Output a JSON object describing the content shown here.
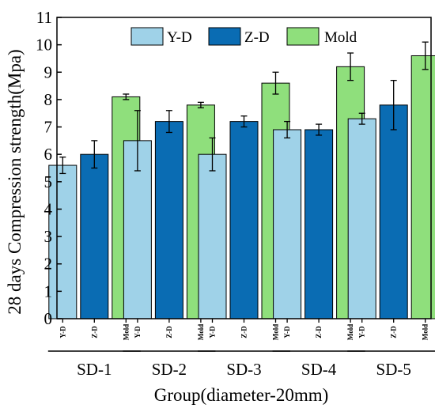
{
  "chart_data": {
    "type": "bar",
    "xlabel": "Group(diameter-20mm)",
    "ylabel": "28 days Compression strength(Mpa)",
    "ylim": [
      0,
      11
    ],
    "yticks": [
      0,
      1,
      2,
      3,
      4,
      5,
      6,
      7,
      8,
      9,
      10,
      11
    ],
    "grid": false,
    "legend_position": "top-center",
    "categories": [
      "SD-1",
      "SD-2",
      "SD-3",
      "SD-4",
      "SD-5"
    ],
    "bar_tick_labels": [
      "Y-D",
      "Z-D",
      "Mold"
    ],
    "series": [
      {
        "name": "Y-D",
        "color": "#9fd2e8",
        "values": [
          5.6,
          6.5,
          6.0,
          6.9,
          7.3
        ],
        "errors": [
          0.3,
          1.1,
          0.6,
          0.3,
          0.2
        ]
      },
      {
        "name": "Z-D",
        "color": "#0a6cb3",
        "values": [
          6.0,
          7.2,
          7.2,
          6.9,
          7.8
        ],
        "errors": [
          0.5,
          0.4,
          0.2,
          0.2,
          0.9
        ]
      },
      {
        "name": "Mold",
        "color": "#8fdf7c",
        "values": [
          8.1,
          7.8,
          8.6,
          9.2,
          9.6
        ],
        "errors": [
          0.1,
          0.1,
          0.4,
          0.5,
          0.5
        ]
      }
    ]
  }
}
